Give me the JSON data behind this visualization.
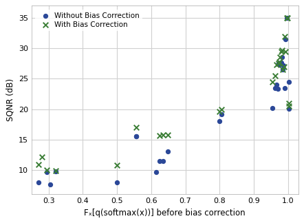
{
  "title": "",
  "xlabel": "Fₓ[q(softmax(x))] before bias correction",
  "ylabel": "SQNR (dB)",
  "xlim": [
    0.25,
    1.03
  ],
  "ylim": [
    6,
    37
  ],
  "xticks": [
    0.3,
    0.4,
    0.5,
    0.6,
    0.7,
    0.8,
    0.9,
    1.0
  ],
  "yticks": [
    10,
    15,
    20,
    25,
    30,
    35
  ],
  "without_bc_x": [
    0.27,
    0.295,
    0.305,
    0.32,
    0.5,
    0.555,
    0.555,
    0.615,
    0.625,
    0.635,
    0.648,
    0.8,
    0.805,
    0.955,
    0.963,
    0.967,
    0.97,
    0.972,
    0.975,
    0.977,
    0.978,
    0.98,
    0.982,
    0.984,
    0.987,
    0.99,
    0.993,
    0.997,
    1.002,
    1.002
  ],
  "without_bc_y": [
    8.0,
    9.6,
    7.6,
    9.8,
    8.0,
    15.5,
    15.5,
    9.7,
    11.5,
    11.5,
    13.0,
    18.0,
    19.2,
    20.2,
    23.5,
    24.0,
    23.3,
    27.5,
    27.3,
    27.5,
    27.7,
    27.7,
    28.5,
    26.5,
    27.2,
    23.5,
    31.5,
    35.0,
    20.1,
    24.5
  ],
  "with_bc_x": [
    0.27,
    0.28,
    0.295,
    0.32,
    0.5,
    0.555,
    0.625,
    0.635,
    0.648,
    0.8,
    0.805,
    0.955,
    0.963,
    0.967,
    0.972,
    0.975,
    0.977,
    0.98,
    0.983,
    0.985,
    0.988,
    0.99,
    0.993,
    0.996,
    0.999,
    1.002,
    1.002
  ],
  "with_bc_y": [
    10.9,
    12.1,
    10.0,
    9.9,
    10.8,
    17.0,
    15.6,
    15.8,
    15.8,
    19.6,
    20.0,
    24.5,
    25.5,
    27.3,
    27.5,
    27.8,
    28.5,
    29.5,
    29.7,
    26.5,
    27.0,
    32.0,
    29.5,
    35.0,
    35.0,
    21.0,
    20.5
  ],
  "color_without": "#2b4898",
  "color_with": "#3a7d35",
  "marker_without": "o",
  "marker_with": "x",
  "label_without": "Without Bias Correction",
  "label_with": "With Bias Correction",
  "marker_size_without": 18,
  "marker_size_with": 30,
  "bg_color": "#ffffff",
  "grid_color": "#d0d0d0"
}
